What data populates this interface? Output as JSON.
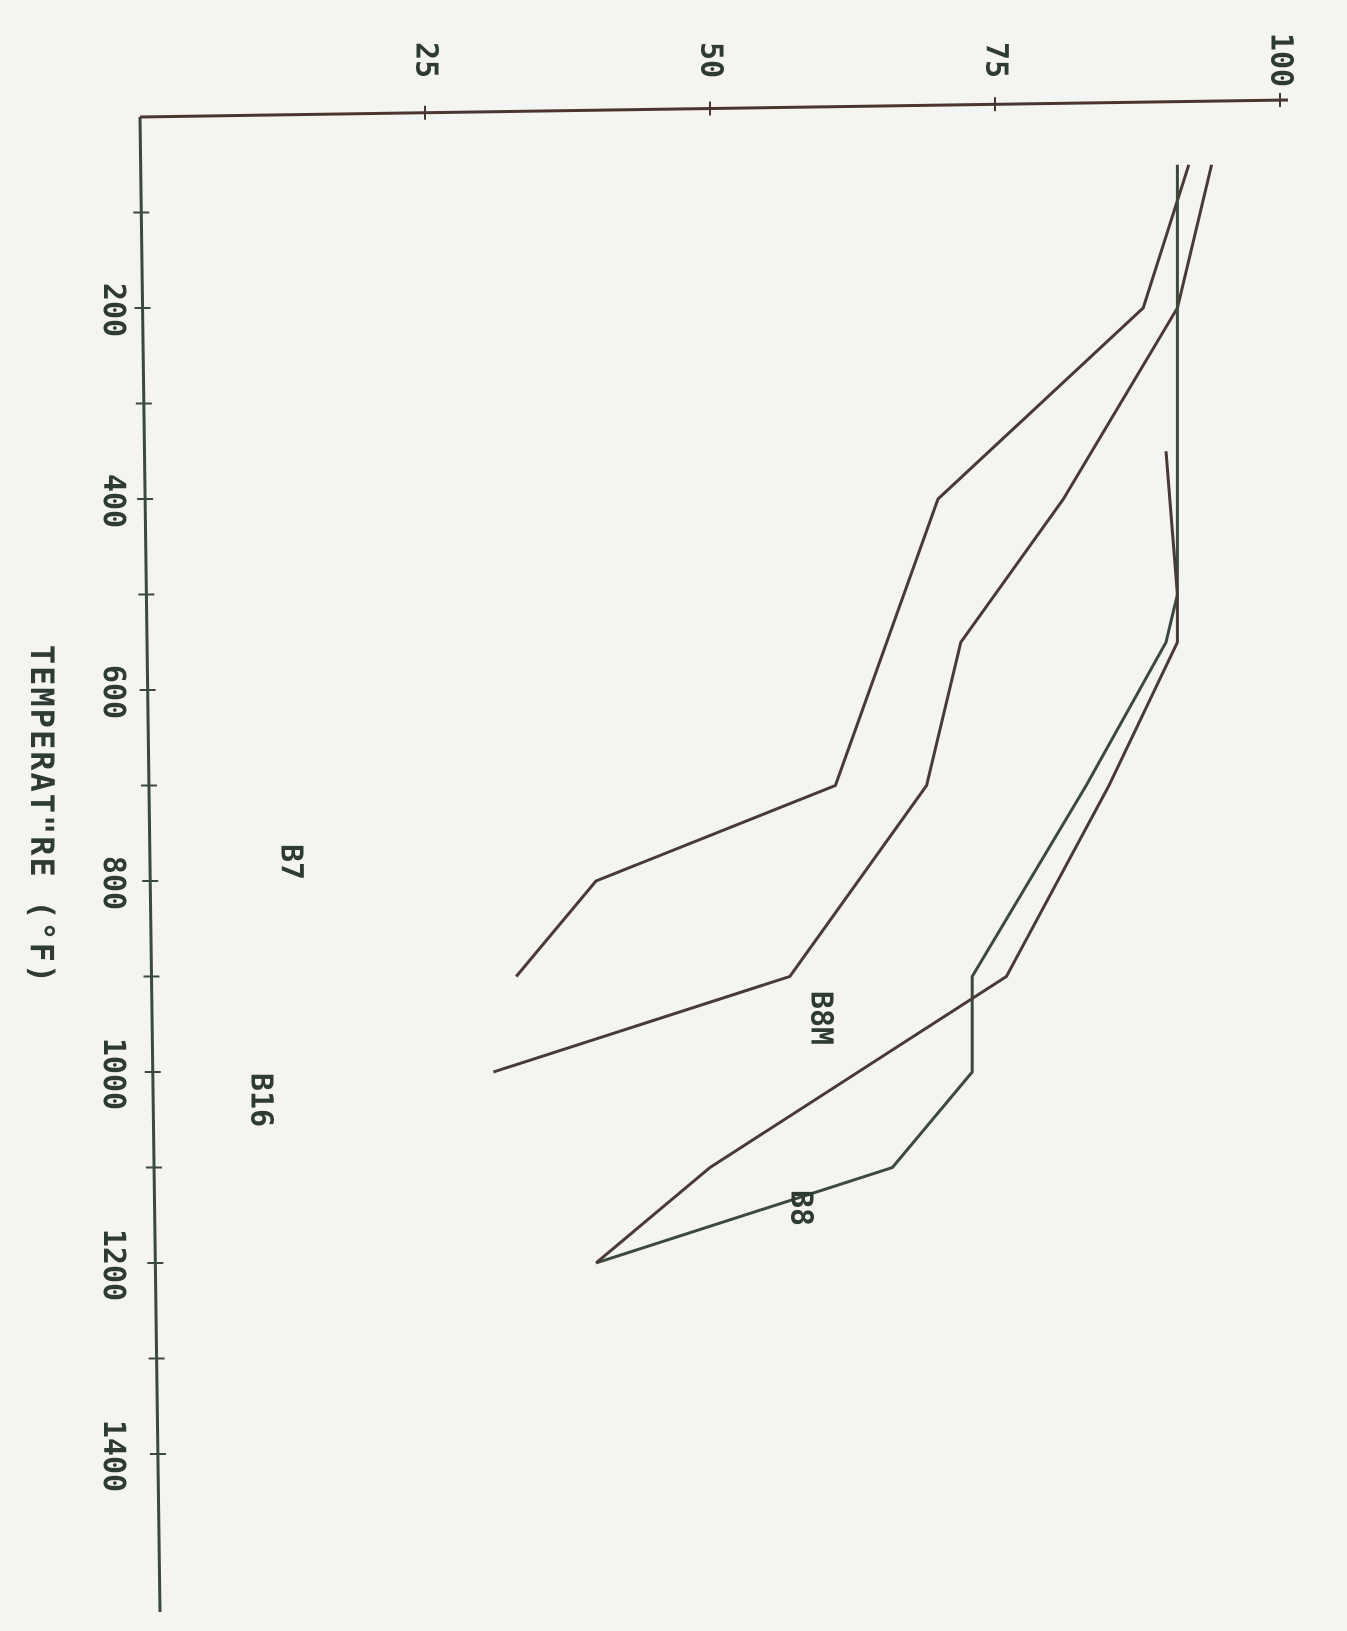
{
  "chart_data": {
    "type": "line",
    "orientation": "rotated-90-clockwise",
    "title": "",
    "xlabel": "TEMPERAT\"RE (°F)",
    "ylabel": "",
    "xlim": [
      0,
      1500
    ],
    "ylim": [
      0,
      100
    ],
    "x_ticks": [
      200,
      400,
      600,
      800,
      1000,
      1200,
      1400
    ],
    "y_ticks": [
      25,
      50,
      75,
      100
    ],
    "grid": false,
    "legend": "none",
    "series": [
      {
        "name": "B7",
        "color": "#4a3a35",
        "x": [
          50,
          200,
          400,
          700,
          800,
          900
        ],
        "y": [
          92,
          88,
          70,
          61,
          40,
          33
        ]
      },
      {
        "name": "B16",
        "color": "#4a3a35",
        "x": [
          50,
          200,
          400,
          550,
          700,
          900,
          1000
        ],
        "y": [
          94,
          91,
          81,
          72,
          69,
          57,
          31
        ]
      },
      {
        "name": "B8M",
        "color": "#3c4a3c",
        "x": [
          50,
          150,
          500,
          550,
          700,
          900,
          1000,
          1100,
          1200
        ],
        "y": [
          91,
          91,
          91,
          90,
          83,
          73,
          73,
          66,
          40
        ]
      },
      {
        "name": "B8",
        "color": "#4a3a35",
        "x": [
          350,
          500,
          550,
          700,
          900,
          1100,
          1200
        ],
        "y": [
          90,
          91,
          91,
          85,
          76,
          50,
          40
        ]
      }
    ],
    "labels": {
      "B7": "B7",
      "B16": "B16",
      "B8M": "B8M",
      "B8": "B8"
    }
  }
}
